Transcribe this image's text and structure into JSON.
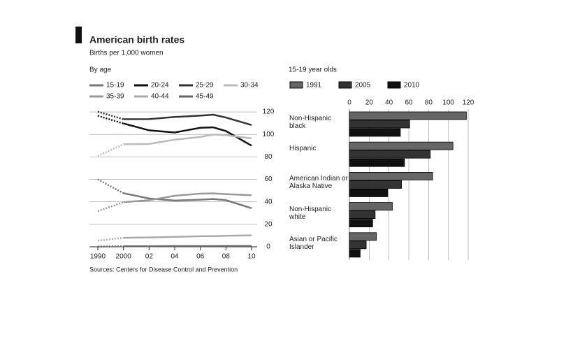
{
  "title": "American birth rates",
  "subtitle": "Births per 1,000 women",
  "source": "Sources: Centers for Disease Control and Prevention",
  "chart_data": [
    {
      "type": "line",
      "title": "By age",
      "x": [
        1990,
        2000,
        2002,
        2004,
        2006,
        2007,
        2008,
        2010
      ],
      "xticks": [
        1990,
        2000,
        {
          "value": 2002,
          "label": "02"
        },
        {
          "value": 2004,
          "label": "04"
        },
        {
          "value": 2006,
          "label": "06"
        },
        {
          "value": 2008,
          "label": "08"
        },
        {
          "value": 2010,
          "label": "10"
        }
      ],
      "ylim": [
        0,
        125
      ],
      "yticks": [
        0,
        20,
        40,
        60,
        80,
        100,
        120
      ],
      "grid": true,
      "series": [
        {
          "name": "15-19",
          "color": "#777777",
          "values": [
            59.9,
            47.7,
            43.0,
            41.1,
            41.9,
            42.5,
            41.5,
            34.3
          ]
        },
        {
          "name": "20-24",
          "color": "#111111",
          "values": [
            116.5,
            109.7,
            103.6,
            101.7,
            105.9,
            106.3,
            103.0,
            90.0
          ]
        },
        {
          "name": "25-29",
          "color": "#333333",
          "values": [
            120.2,
            113.5,
            113.6,
            115.5,
            116.7,
            117.5,
            115.0,
            108.3
          ]
        },
        {
          "name": "30-34",
          "color": "#bbbbbb",
          "values": [
            80.8,
            91.2,
            91.5,
            95.3,
            97.7,
            99.9,
            99.3,
            96.5
          ]
        },
        {
          "name": "35-39",
          "color": "#999999",
          "values": [
            31.7,
            39.7,
            41.4,
            45.4,
            47.3,
            47.5,
            46.9,
            45.9
          ]
        },
        {
          "name": "40-44",
          "color": "#aaaaaa",
          "values": [
            5.5,
            8.0,
            8.3,
            8.9,
            9.4,
            9.5,
            9.8,
            10.2
          ]
        },
        {
          "name": "45-49",
          "color": "#666666",
          "values": [
            0.2,
            0.5,
            0.5,
            0.6,
            0.6,
            0.6,
            0.7,
            0.7
          ]
        }
      ]
    },
    {
      "type": "hbar",
      "title": "15-19 year olds",
      "categories": [
        "Non-Hispanic black",
        "Hispanic",
        "American Indian or Alaska Native",
        "Non-Hispanic white",
        "Asian or Pacific Islander"
      ],
      "xlim": [
        0,
        120
      ],
      "xticks": [
        0,
        20,
        40,
        60,
        80,
        100,
        120
      ],
      "grid": true,
      "series": [
        {
          "name": "1991",
          "color": "#666666",
          "values": [
            118.2,
            104.6,
            84.1,
            43.4,
            27.3
          ]
        },
        {
          "name": "2005",
          "color": "#333333",
          "values": [
            60.9,
            81.7,
            52.7,
            26.0,
            17.0
          ]
        },
        {
          "name": "2010",
          "color": "#111111",
          "values": [
            51.5,
            55.7,
            38.7,
            23.5,
            10.9
          ]
        }
      ]
    }
  ]
}
